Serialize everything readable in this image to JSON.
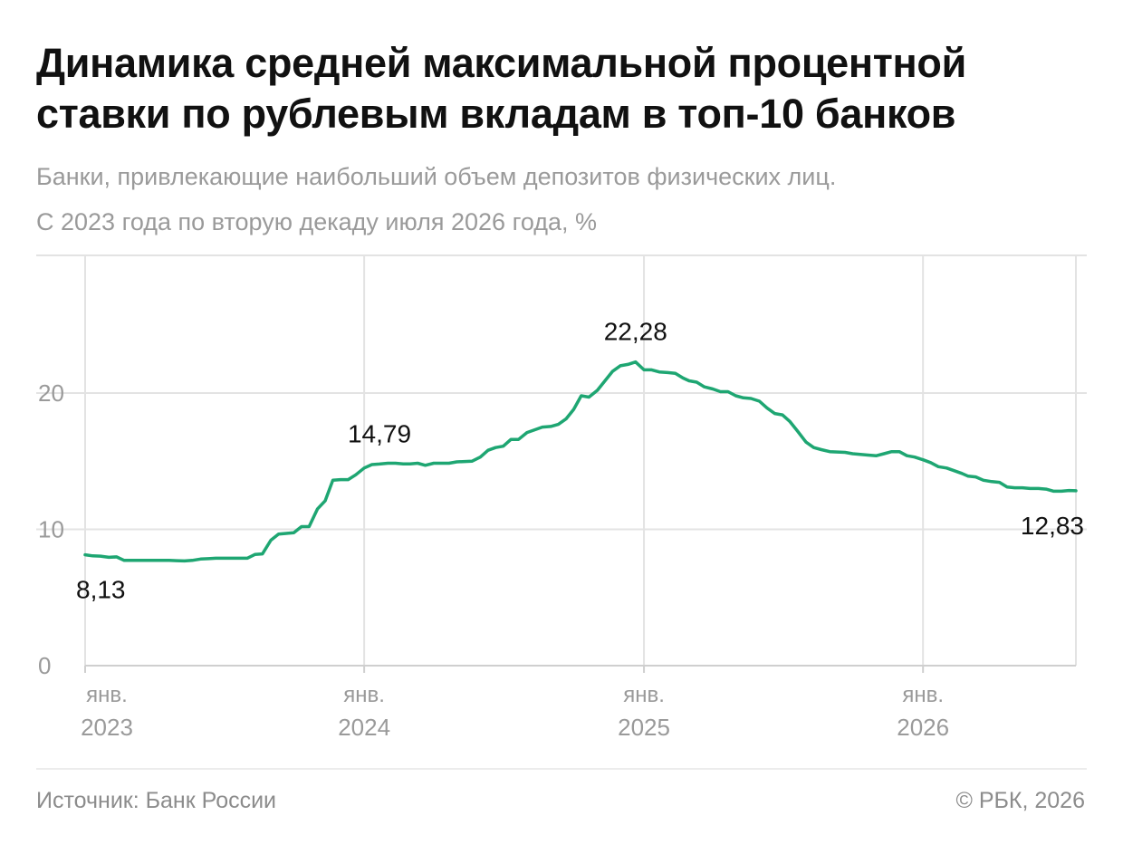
{
  "header": {
    "title_line1": "Динамика средней максимальной процентной",
    "title_line2": "ставки по рублевым вкладам в топ-10 банков",
    "subtitle_line1": "Банки, привлекающие наибольший объем депозитов физических лиц.",
    "subtitle_line2": "С 2023 года по вторую декаду июля 2026 года, %"
  },
  "footer": {
    "source": "Источник: Банк России",
    "copyright": "© РБК, 2026"
  },
  "colors": {
    "line": "#1ea672",
    "grid": "#e3e3e3",
    "axis_text": "#9a9a9a",
    "label_text": "#111111"
  },
  "chart_data": {
    "type": "line",
    "title": "Динамика средней максимальной процентной ставки по рублевым вкладам в топ-10 банков",
    "xlabel": "",
    "ylabel": "",
    "ylim": [
      0,
      30
    ],
    "xlim": [
      "2023-01-01",
      "2026-07-20"
    ],
    "grid": true,
    "y_ticks": [
      0,
      10,
      20
    ],
    "x_ticks": [
      {
        "date": "2023-01-01",
        "month": "янв.",
        "year": "2023"
      },
      {
        "date": "2024-01-01",
        "month": "янв.",
        "year": "2024"
      },
      {
        "date": "2025-01-01",
        "month": "янв.",
        "year": "2025"
      },
      {
        "date": "2026-01-01",
        "month": "янв.",
        "year": "2026"
      }
    ],
    "series": [
      {
        "values": [
          [
            "2023-01-01",
            8.13
          ],
          [
            "2023-01-11",
            8.05
          ],
          [
            "2023-01-21",
            8.03
          ],
          [
            "2023-02-01",
            7.95
          ],
          [
            "2023-02-11",
            7.98
          ],
          [
            "2023-02-21",
            7.72
          ],
          [
            "2023-03-01",
            7.72
          ],
          [
            "2023-03-21",
            7.72
          ],
          [
            "2023-04-01",
            7.72
          ],
          [
            "2023-04-21",
            7.72
          ],
          [
            "2023-05-01",
            7.7
          ],
          [
            "2023-05-11",
            7.68
          ],
          [
            "2023-05-21",
            7.72
          ],
          [
            "2023-06-01",
            7.82
          ],
          [
            "2023-06-11",
            7.85
          ],
          [
            "2023-06-21",
            7.88
          ],
          [
            "2023-07-01",
            7.88
          ],
          [
            "2023-07-21",
            7.88
          ],
          [
            "2023-08-01",
            7.88
          ],
          [
            "2023-08-11",
            8.15
          ],
          [
            "2023-08-21",
            8.2
          ],
          [
            "2023-09-01",
            9.2
          ],
          [
            "2023-09-11",
            9.65
          ],
          [
            "2023-09-21",
            9.7
          ],
          [
            "2023-10-01",
            9.75
          ],
          [
            "2023-10-11",
            10.2
          ],
          [
            "2023-10-21",
            10.2
          ],
          [
            "2023-11-01",
            11.5
          ],
          [
            "2023-11-11",
            12.1
          ],
          [
            "2023-11-21",
            13.6
          ],
          [
            "2023-12-01",
            13.65
          ],
          [
            "2023-12-11",
            13.65
          ],
          [
            "2023-12-21",
            14.0
          ],
          [
            "2024-01-01",
            14.5
          ],
          [
            "2024-01-11",
            14.75
          ],
          [
            "2024-01-21",
            14.79
          ],
          [
            "2024-02-01",
            14.85
          ],
          [
            "2024-02-11",
            14.85
          ],
          [
            "2024-02-21",
            14.8
          ],
          [
            "2024-03-01",
            14.8
          ],
          [
            "2024-03-11",
            14.85
          ],
          [
            "2024-03-21",
            14.7
          ],
          [
            "2024-04-01",
            14.85
          ],
          [
            "2024-04-21",
            14.85
          ],
          [
            "2024-05-01",
            14.95
          ],
          [
            "2024-05-21",
            15.0
          ],
          [
            "2024-06-01",
            15.3
          ],
          [
            "2024-06-11",
            15.8
          ],
          [
            "2024-06-21",
            16.0
          ],
          [
            "2024-07-01",
            16.1
          ],
          [
            "2024-07-11",
            16.6
          ],
          [
            "2024-07-21",
            16.6
          ],
          [
            "2024-08-01",
            17.1
          ],
          [
            "2024-08-11",
            17.3
          ],
          [
            "2024-08-21",
            17.5
          ],
          [
            "2024-09-01",
            17.55
          ],
          [
            "2024-09-11",
            17.7
          ],
          [
            "2024-09-21",
            18.1
          ],
          [
            "2024-10-01",
            18.8
          ],
          [
            "2024-10-11",
            19.8
          ],
          [
            "2024-10-21",
            19.7
          ],
          [
            "2024-11-01",
            20.2
          ],
          [
            "2024-11-11",
            20.9
          ],
          [
            "2024-11-21",
            21.6
          ],
          [
            "2024-12-01",
            22.0
          ],
          [
            "2024-12-11",
            22.1
          ],
          [
            "2024-12-21",
            22.28
          ],
          [
            "2025-01-01",
            21.7
          ],
          [
            "2025-01-11",
            21.7
          ],
          [
            "2025-01-21",
            21.55
          ],
          [
            "2025-02-01",
            21.5
          ],
          [
            "2025-02-11",
            21.45
          ],
          [
            "2025-02-21",
            21.1
          ],
          [
            "2025-03-01",
            20.9
          ],
          [
            "2025-03-11",
            20.8
          ],
          [
            "2025-03-21",
            20.45
          ],
          [
            "2025-04-01",
            20.3
          ],
          [
            "2025-04-11",
            20.1
          ],
          [
            "2025-04-21",
            20.1
          ],
          [
            "2025-05-01",
            19.8
          ],
          [
            "2025-05-11",
            19.65
          ],
          [
            "2025-05-21",
            19.6
          ],
          [
            "2025-06-01",
            19.4
          ],
          [
            "2025-06-11",
            18.9
          ],
          [
            "2025-06-21",
            18.5
          ],
          [
            "2025-07-01",
            18.4
          ],
          [
            "2025-07-11",
            17.9
          ],
          [
            "2025-07-21",
            17.2
          ],
          [
            "2025-08-01",
            16.4
          ],
          [
            "2025-08-11",
            16.0
          ],
          [
            "2025-08-21",
            15.85
          ],
          [
            "2025-09-01",
            15.7
          ],
          [
            "2025-09-21",
            15.65
          ],
          [
            "2025-10-01",
            15.55
          ],
          [
            "2025-10-21",
            15.45
          ],
          [
            "2025-11-01",
            15.4
          ],
          [
            "2025-11-11",
            15.55
          ],
          [
            "2025-11-21",
            15.7
          ],
          [
            "2025-12-01",
            15.7
          ],
          [
            "2025-12-11",
            15.4
          ],
          [
            "2025-12-21",
            15.3
          ],
          [
            "2026-01-01",
            15.1
          ],
          [
            "2026-01-11",
            14.9
          ],
          [
            "2026-01-21",
            14.6
          ],
          [
            "2026-02-01",
            14.5
          ],
          [
            "2026-02-11",
            14.3
          ],
          [
            "2026-02-21",
            14.1
          ],
          [
            "2026-03-01",
            13.9
          ],
          [
            "2026-03-11",
            13.85
          ],
          [
            "2026-03-21",
            13.6
          ],
          [
            "2026-04-01",
            13.5
          ],
          [
            "2026-04-11",
            13.45
          ],
          [
            "2026-04-21",
            13.1
          ],
          [
            "2026-05-01",
            13.05
          ],
          [
            "2026-05-11",
            13.05
          ],
          [
            "2026-05-21",
            13.0
          ],
          [
            "2026-06-01",
            13.0
          ],
          [
            "2026-06-11",
            12.95
          ],
          [
            "2026-06-21",
            12.8
          ],
          [
            "2026-07-01",
            12.8
          ],
          [
            "2026-07-11",
            12.85
          ],
          [
            "2026-07-20",
            12.83
          ]
        ]
      }
    ],
    "annotations": [
      {
        "date": "2023-01-01",
        "value": 8.13,
        "text": "8,13",
        "position": "below"
      },
      {
        "date": "2024-01-21",
        "value": 14.79,
        "text": "14,79",
        "position": "above"
      },
      {
        "date": "2024-12-21",
        "value": 22.28,
        "text": "22,28",
        "position": "above"
      },
      {
        "date": "2026-07-20",
        "value": 12.83,
        "text": "12,83",
        "position": "below"
      }
    ]
  }
}
